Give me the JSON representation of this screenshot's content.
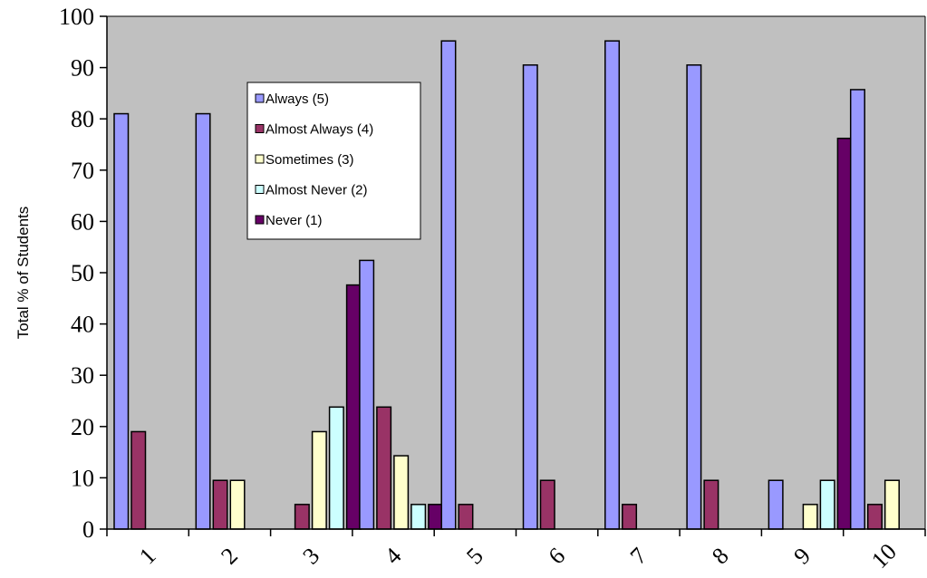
{
  "chart_data": {
    "type": "bar",
    "title": "",
    "xlabel": "",
    "ylabel": "Total % of Students",
    "ylim": [
      0,
      100
    ],
    "yticks": [
      "0",
      "10",
      "20",
      "30",
      "40",
      "50",
      "60",
      "70",
      "80",
      "90",
      "100"
    ],
    "categories": [
      "1",
      "2",
      "3",
      "4",
      "5",
      "6",
      "7",
      "8",
      "9",
      "10"
    ],
    "grid": false,
    "legend_position": "top-left inside plot",
    "plot_background": "#c0c0c0",
    "series": [
      {
        "name": "Always (5)",
        "color": "#9999ff",
        "values": [
          81,
          81,
          0,
          52.4,
          95.2,
          90.5,
          95.2,
          90.5,
          9.5,
          85.7
        ]
      },
      {
        "name": "Almost Always (4)",
        "color": "#993366",
        "values": [
          19,
          9.5,
          4.8,
          23.8,
          4.8,
          9.5,
          4.8,
          9.5,
          0,
          4.8
        ]
      },
      {
        "name": "Sometimes (3)",
        "color": "#ffffcc",
        "values": [
          0,
          9.5,
          19,
          14.3,
          0,
          0,
          0,
          0,
          4.8,
          9.5
        ]
      },
      {
        "name": "Almost Never (2)",
        "color": "#ccffff",
        "values": [
          0,
          0,
          23.8,
          4.8,
          0,
          0,
          0,
          0,
          9.5,
          0
        ]
      },
      {
        "name": "Never (1)",
        "color": "#660066",
        "values": [
          0,
          0,
          47.6,
          4.8,
          0,
          0,
          0,
          0,
          76.2,
          0
        ]
      }
    ]
  }
}
